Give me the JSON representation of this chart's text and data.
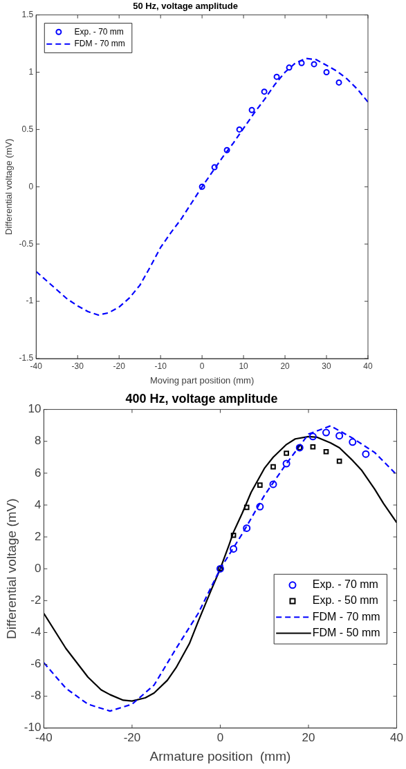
{
  "chart_data": [
    {
      "type": "line",
      "title": "50 Hz, voltage amplitude",
      "xlabel": "Moving part position (mm)",
      "ylabel": "Differential voltage (mV)",
      "xlim": [
        -40,
        40
      ],
      "xticks": [
        -40,
        -30,
        -20,
        -10,
        0,
        10,
        20,
        30,
        40
      ],
      "ylim": [
        -1.5,
        1.5
      ],
      "yticks": [
        -1.5,
        -1,
        -0.5,
        0,
        0.5,
        1,
        1.5
      ],
      "grid": false,
      "legend": "top left",
      "series": [
        {
          "name": "Exp. - 70 mm",
          "type": "scatter",
          "marker": "circle",
          "color": "#0000ff",
          "x": [
            0,
            3,
            6,
            9,
            12,
            15,
            18,
            21,
            24,
            27,
            30,
            33
          ],
          "values": [
            0,
            0.17,
            0.32,
            0.5,
            0.67,
            0.83,
            0.96,
            1.04,
            1.08,
            1.07,
            1.0,
            0.91
          ]
        },
        {
          "name": "FDM - 70 mm",
          "type": "line",
          "line_style": "dashed",
          "color": "#0000ff",
          "x": [
            -40,
            -37.5,
            -35,
            -32.5,
            -30,
            -27.5,
            -25,
            -22.5,
            -20,
            -17.5,
            -15,
            -12.5,
            -10,
            -7.5,
            -5,
            -2.5,
            0,
            2.5,
            5,
            7.5,
            10,
            12.5,
            15,
            17.5,
            20,
            22.5,
            25,
            27.5,
            30,
            32.5,
            35,
            37.5,
            40
          ],
          "values": [
            -0.74,
            -0.82,
            -0.9,
            -0.98,
            -1.04,
            -1.09,
            -1.12,
            -1.1,
            -1.05,
            -0.97,
            -0.86,
            -0.7,
            -0.53,
            -0.4,
            -0.28,
            -0.14,
            0,
            0.13,
            0.26,
            0.38,
            0.51,
            0.64,
            0.76,
            0.89,
            1.0,
            1.08,
            1.12,
            1.11,
            1.06,
            1.01,
            0.94,
            0.85,
            0.74
          ]
        }
      ]
    },
    {
      "type": "line",
      "title": "400 Hz, voltage amplitude",
      "xlabel": "Armature position  (mm)",
      "ylabel": "Differential voltage (mV)",
      "xlim": [
        -40,
        40
      ],
      "xticks": [
        -40,
        -20,
        0,
        20,
        40
      ],
      "ylim": [
        -10,
        10
      ],
      "yticks": [
        -10,
        -8,
        -6,
        -4,
        -2,
        0,
        2,
        4,
        6,
        8,
        10
      ],
      "grid": false,
      "legend": "right",
      "series": [
        {
          "name": "Exp. - 70 mm",
          "type": "scatter",
          "marker": "circle",
          "color": "#0000ff",
          "x": [
            0,
            3,
            6,
            9,
            12,
            15,
            18,
            21,
            24,
            27,
            30,
            33
          ],
          "values": [
            0,
            1.25,
            2.55,
            3.9,
            5.3,
            6.6,
            7.6,
            8.3,
            8.55,
            8.35,
            7.95,
            7.2
          ]
        },
        {
          "name": "Exp. - 50 mm",
          "type": "scatter",
          "marker": "square",
          "color": "#000000",
          "x": [
            0,
            3,
            6,
            9,
            12,
            15,
            18,
            21,
            24,
            27
          ],
          "values": [
            0,
            2.1,
            3.85,
            5.25,
            6.4,
            7.25,
            7.6,
            7.65,
            7.35,
            6.75
          ]
        },
        {
          "name": "FDM - 70 mm",
          "type": "line",
          "line_style": "dashed",
          "color": "#0000ff",
          "x": [
            -40,
            -35,
            -30,
            -25,
            -20,
            -15,
            -10,
            -5,
            0,
            5,
            10,
            15,
            20,
            25,
            30,
            35,
            40
          ],
          "values": [
            -5.9,
            -7.5,
            -8.5,
            -8.93,
            -8.5,
            -7.3,
            -5.0,
            -2.8,
            0,
            2.2,
            4.6,
            6.6,
            8.45,
            8.97,
            8.2,
            7.3,
            5.9
          ]
        },
        {
          "name": "FDM - 50 mm",
          "type": "line",
          "line_style": "solid",
          "color": "#000000",
          "x": [
            -40,
            -35,
            -30,
            -27,
            -25,
            -22,
            -20,
            -17,
            -15,
            -12,
            -10,
            -7,
            -5,
            -2,
            0,
            2,
            3,
            5,
            7,
            10,
            12,
            15,
            17,
            20,
            22,
            25,
            27,
            30,
            32,
            35,
            37,
            40
          ],
          "values": [
            -2.8,
            -5.0,
            -6.8,
            -7.6,
            -7.9,
            -8.25,
            -8.3,
            -8.1,
            -7.8,
            -7.0,
            -6.2,
            -4.7,
            -3.3,
            -1.3,
            0,
            1.5,
            2.3,
            3.5,
            4.8,
            6.3,
            7.0,
            7.8,
            8.15,
            8.3,
            8.25,
            7.9,
            7.6,
            6.8,
            6.2,
            5.0,
            4.1,
            2.9
          ]
        }
      ]
    }
  ]
}
